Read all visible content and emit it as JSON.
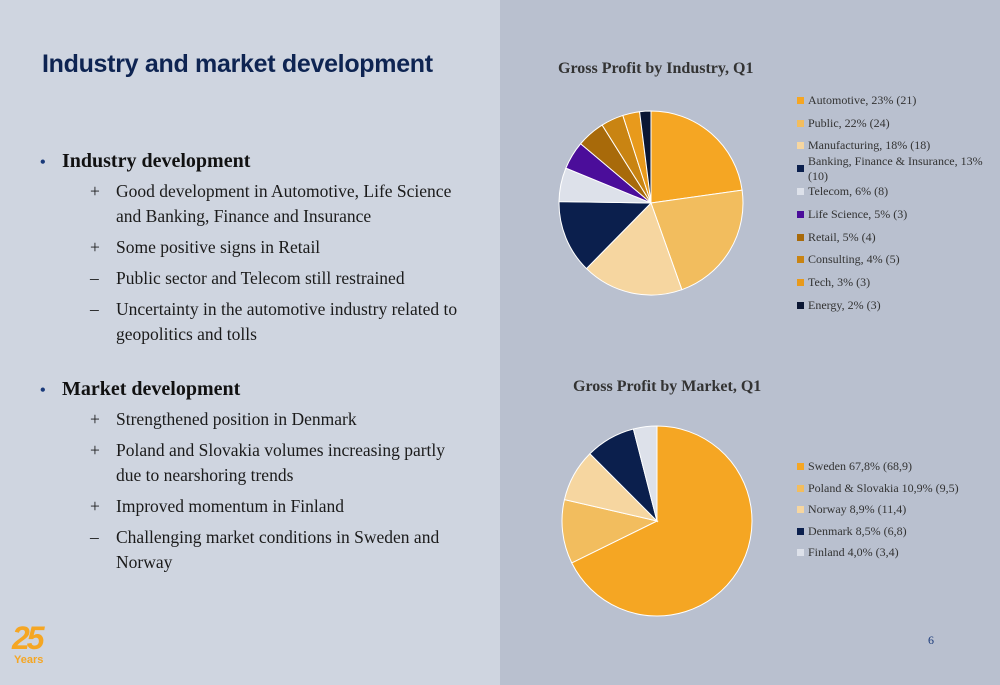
{
  "slide": {
    "title": "Industry and market development",
    "page_number": "6",
    "logo": {
      "number": "25",
      "label": "Years"
    }
  },
  "bullets": [
    {
      "heading": "Industry development",
      "items": [
        {
          "sign": "+",
          "lines": [
            "Good development in Automotive, Life Science",
            "and Banking, Finance and Insurance"
          ]
        },
        {
          "sign": "+",
          "lines": [
            "Some positive signs in Retail"
          ]
        },
        {
          "sign": "–",
          "lines": [
            "Public sector and Telecom still restrained"
          ]
        },
        {
          "sign": "–",
          "lines": [
            "Uncertainty in the automotive industry related to",
            "geopolitics and tolls"
          ]
        }
      ]
    },
    {
      "heading": "Market development",
      "items": [
        {
          "sign": "+",
          "lines": [
            "Strengthened position in Denmark"
          ]
        },
        {
          "sign": "+",
          "lines": [
            "Poland and Slovakia volumes increasing partly",
            "due to nearshoring trends"
          ]
        },
        {
          "sign": "+",
          "lines": [
            "Improved momentum in Finland"
          ]
        },
        {
          "sign": "–",
          "lines": [
            "Challenging market conditions in Sweden and",
            "Norway"
          ]
        }
      ]
    }
  ],
  "chart_data": [
    {
      "type": "pie",
      "title": "Gross Profit by Industry, Q1",
      "legend_position": "right",
      "slices": [
        {
          "label": "Automotive, 23% (21)",
          "value": 23,
          "color": "#f5a623"
        },
        {
          "label": "Public, 22% (24)",
          "value": 22,
          "color": "#f2bd5e"
        },
        {
          "label": "Manufacturing, 18% (18)",
          "value": 18,
          "color": "#f6d6a0"
        },
        {
          "label": "Banking, Finance & Insurance, 13% (10)",
          "value": 13,
          "color": "#0b1f4d"
        },
        {
          "label": "Telecom, 6% (8)",
          "value": 6,
          "color": "#dde1ea"
        },
        {
          "label": "Life Science, 5% (3)",
          "value": 5,
          "color": "#4b0d9a"
        },
        {
          "label": "Retail, 5% (4)",
          "value": 5,
          "color": "#a86a0a"
        },
        {
          "label": "Consulting, 4% (5)",
          "value": 4,
          "color": "#c98412"
        },
        {
          "label": "Tech, 3% (3)",
          "value": 3,
          "color": "#e89a1c"
        },
        {
          "label": "Energy, 2% (3)",
          "value": 2,
          "color": "#0a1633"
        }
      ]
    },
    {
      "type": "pie",
      "title": "Gross Profit by Market, Q1",
      "legend_position": "right",
      "slices": [
        {
          "label": "Sweden 67,8% (68,9)",
          "value": 67.8,
          "color": "#f5a623"
        },
        {
          "label": "Poland & Slovakia 10,9% (9,5)",
          "value": 10.9,
          "color": "#f2bd5e"
        },
        {
          "label": "Norway 8,9% (11,4)",
          "value": 8.9,
          "color": "#f6d6a0"
        },
        {
          "label": "Denmark 8,5% (6,8)",
          "value": 8.5,
          "color": "#0b1f4d"
        },
        {
          "label": "Finland 4,0% (3,4)",
          "value": 4.0,
          "color": "#dde1ea"
        }
      ]
    }
  ]
}
